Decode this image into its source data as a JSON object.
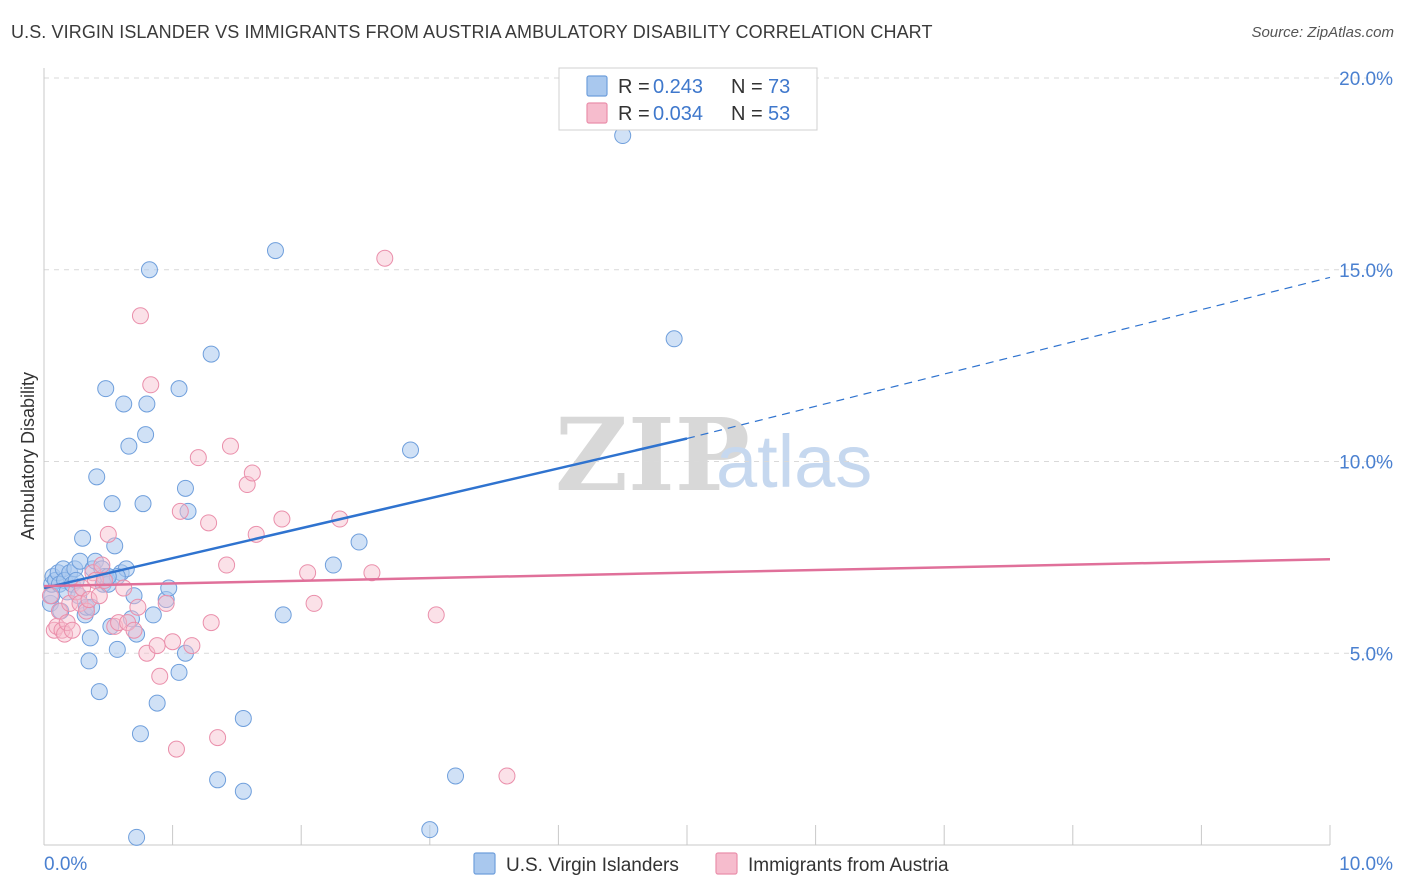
{
  "header": {
    "title": "U.S. VIRGIN ISLANDER VS IMMIGRANTS FROM AUSTRIA AMBULATORY DISABILITY CORRELATION CHART",
    "source": "Source: ZipAtlas.com"
  },
  "watermark": {
    "zip": "ZIP",
    "atlas": "atlas"
  },
  "legend": {
    "rows": [
      {
        "r_label": "R =",
        "r_value": "0.243",
        "n_label": "N =",
        "n_value": "73"
      },
      {
        "r_label": "R =",
        "r_value": "0.034",
        "n_label": "N =",
        "n_value": "53"
      }
    ]
  },
  "colors": {
    "series_a_fill": "#a9c8ee",
    "series_a_stroke": "#6f9fdc",
    "series_a_line": "#2f73cf",
    "series_b_fill": "#f6bccd",
    "series_b_stroke": "#ea8fab",
    "series_b_line": "#e0709a",
    "grid": "#d9d9d9",
    "tick_text": "#4a80d0"
  },
  "chart_data": {
    "type": "scatter",
    "title": "U.S. VIRGIN ISLANDER VS IMMIGRANTS FROM AUSTRIA AMBULATORY DISABILITY CORRELATION CHART",
    "xlabel": "",
    "ylabel": "Ambulatory Disability",
    "xlim": [
      0,
      10
    ],
    "ylim": [
      0,
      20
    ],
    "x_tick_labels": [
      "0.0%",
      "10.0%"
    ],
    "y_ticks": [
      5,
      10,
      15,
      20
    ],
    "y_tick_labels": [
      "5.0%",
      "10.0%",
      "15.0%",
      "20.0%"
    ],
    "grid": true,
    "legend_position": "top-center",
    "series": [
      {
        "name": "U.S. Virgin Islanders",
        "r": 0.243,
        "n": 73,
        "trend": {
          "x0": 0.0,
          "y0": 6.7,
          "x_solid_end": 5.0,
          "y_solid_end": 10.6,
          "x1": 10.0,
          "y1": 14.8
        },
        "points": [
          [
            0.05,
            6.3
          ],
          [
            0.06,
            6.5
          ],
          [
            0.06,
            6.8
          ],
          [
            0.07,
            7.0
          ],
          [
            0.09,
            6.9
          ],
          [
            0.11,
            7.1
          ],
          [
            0.12,
            6.8
          ],
          [
            0.13,
            6.1
          ],
          [
            0.15,
            7.2
          ],
          [
            0.16,
            6.9
          ],
          [
            0.18,
            6.6
          ],
          [
            0.2,
            7.1
          ],
          [
            0.22,
            6.8
          ],
          [
            0.24,
            7.2
          ],
          [
            0.25,
            6.9
          ],
          [
            0.27,
            6.5
          ],
          [
            0.28,
            7.4
          ],
          [
            0.3,
            8.0
          ],
          [
            0.32,
            6.0
          ],
          [
            0.33,
            6.2
          ],
          [
            0.35,
            4.8
          ],
          [
            0.36,
            5.4
          ],
          [
            0.38,
            7.2
          ],
          [
            0.4,
            7.4
          ],
          [
            0.41,
            9.6
          ],
          [
            0.43,
            4.0
          ],
          [
            0.45,
            7.2
          ],
          [
            0.46,
            6.8
          ],
          [
            0.47,
            7.0
          ],
          [
            0.5,
            6.8
          ],
          [
            0.52,
            5.7
          ],
          [
            0.53,
            8.9
          ],
          [
            0.55,
            7.8
          ],
          [
            0.57,
            5.1
          ],
          [
            0.6,
            7.1
          ],
          [
            0.62,
            11.5
          ],
          [
            0.64,
            7.2
          ],
          [
            0.66,
            10.4
          ],
          [
            0.68,
            5.9
          ],
          [
            0.7,
            6.5
          ],
          [
            0.72,
            5.5
          ],
          [
            0.75,
            2.9
          ],
          [
            0.77,
            8.9
          ],
          [
            0.79,
            10.7
          ],
          [
            0.8,
            11.5
          ],
          [
            0.82,
            15.0
          ],
          [
            0.85,
            6.0
          ],
          [
            0.88,
            3.7
          ],
          [
            0.48,
            11.9
          ],
          [
            0.95,
            6.4
          ],
          [
            0.97,
            6.7
          ],
          [
            1.05,
            11.9
          ],
          [
            1.05,
            4.5
          ],
          [
            1.1,
            5.0
          ],
          [
            1.1,
            9.3
          ],
          [
            1.12,
            8.7
          ],
          [
            1.3,
            12.8
          ],
          [
            1.35,
            1.7
          ],
          [
            1.55,
            1.4
          ],
          [
            1.55,
            3.3
          ],
          [
            1.8,
            15.5
          ],
          [
            1.86,
            6.0
          ],
          [
            2.25,
            7.3
          ],
          [
            2.45,
            7.9
          ],
          [
            2.85,
            10.3
          ],
          [
            3.0,
            0.4
          ],
          [
            3.2,
            1.8
          ],
          [
            4.5,
            18.5
          ],
          [
            4.9,
            13.2
          ],
          [
            0.57,
            7.0
          ],
          [
            0.37,
            6.2
          ],
          [
            0.72,
            0.2
          ],
          [
            0.5,
            7.0
          ]
        ]
      },
      {
        "name": "Immigrants from Austria",
        "r": 0.034,
        "n": 53,
        "trend": {
          "x0": 0.0,
          "y0": 6.75,
          "x1": 10.0,
          "y1": 7.45
        },
        "points": [
          [
            0.05,
            6.5
          ],
          [
            0.08,
            5.6
          ],
          [
            0.1,
            5.7
          ],
          [
            0.12,
            6.1
          ],
          [
            0.14,
            5.6
          ],
          [
            0.16,
            5.5
          ],
          [
            0.18,
            5.8
          ],
          [
            0.2,
            6.3
          ],
          [
            0.22,
            5.6
          ],
          [
            0.25,
            6.6
          ],
          [
            0.28,
            6.3
          ],
          [
            0.3,
            6.7
          ],
          [
            0.33,
            6.1
          ],
          [
            0.35,
            6.4
          ],
          [
            0.38,
            7.1
          ],
          [
            0.4,
            6.9
          ],
          [
            0.43,
            6.5
          ],
          [
            0.45,
            7.3
          ],
          [
            0.47,
            6.9
          ],
          [
            0.5,
            8.1
          ],
          [
            0.55,
            5.7
          ],
          [
            0.58,
            5.8
          ],
          [
            0.62,
            6.7
          ],
          [
            0.65,
            5.8
          ],
          [
            0.7,
            5.6
          ],
          [
            0.73,
            6.2
          ],
          [
            0.75,
            13.8
          ],
          [
            0.8,
            5.0
          ],
          [
            0.83,
            12.0
          ],
          [
            0.88,
            5.2
          ],
          [
            0.9,
            4.4
          ],
          [
            0.95,
            6.3
          ],
          [
            1.0,
            5.3
          ],
          [
            1.03,
            2.5
          ],
          [
            1.06,
            8.7
          ],
          [
            1.15,
            5.2
          ],
          [
            1.2,
            10.1
          ],
          [
            1.28,
            8.4
          ],
          [
            1.3,
            5.8
          ],
          [
            1.35,
            2.8
          ],
          [
            1.42,
            7.3
          ],
          [
            1.45,
            10.4
          ],
          [
            1.58,
            9.4
          ],
          [
            1.62,
            9.7
          ],
          [
            1.65,
            8.1
          ],
          [
            1.85,
            8.5
          ],
          [
            2.05,
            7.1
          ],
          [
            2.1,
            6.3
          ],
          [
            2.3,
            8.5
          ],
          [
            2.55,
            7.1
          ],
          [
            2.65,
            15.3
          ],
          [
            3.05,
            6.0
          ],
          [
            3.6,
            1.8
          ]
        ]
      }
    ]
  },
  "bottom_legend": {
    "items": [
      {
        "label": "U.S. Virgin Islanders"
      },
      {
        "label": "Immigrants from Austria"
      }
    ]
  }
}
